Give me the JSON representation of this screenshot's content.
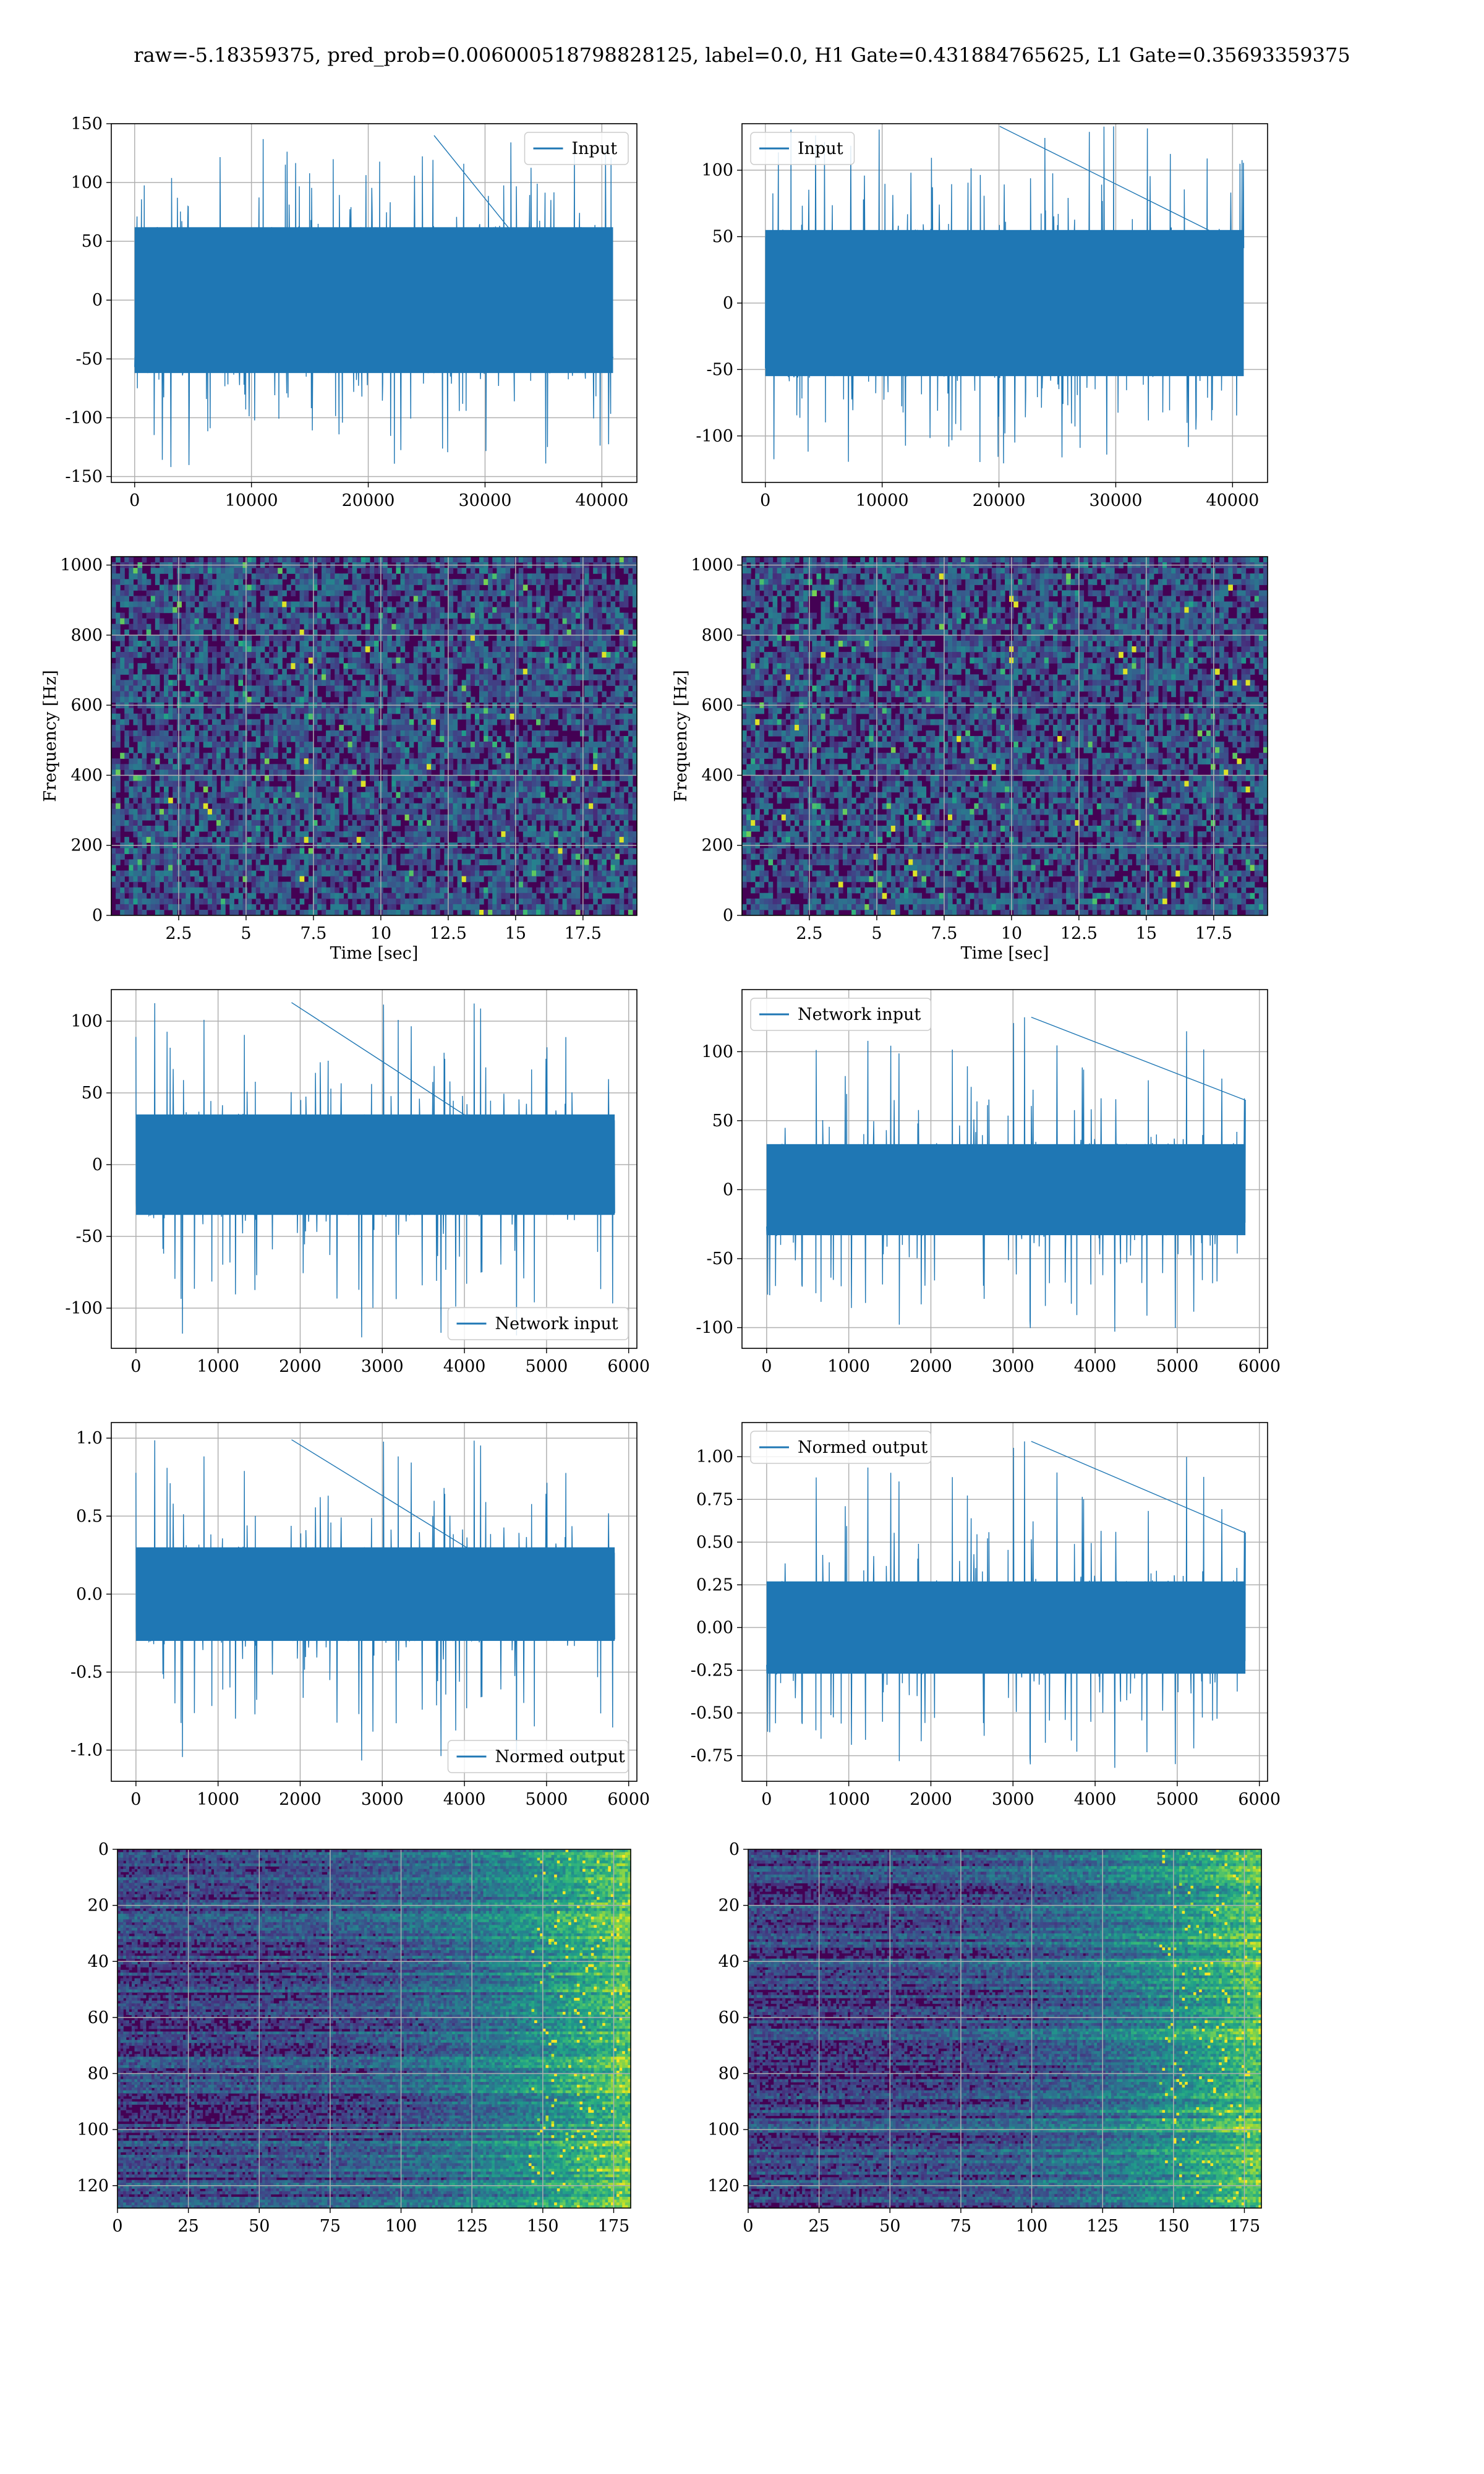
{
  "title": "raw=-5.18359375, pred_prob=0.006000518798828125, label=0.0, H1 Gate=0.431884765625, L1 Gate=0.35693359375",
  "colors": {
    "line": "#1f77b4",
    "grid": "#b0b0b0",
    "viridis": [
      "#440154",
      "#482878",
      "#3e4989",
      "#31688e",
      "#26828e",
      "#1f9e89",
      "#35b779",
      "#6ece58",
      "#b5de2b",
      "#fde725"
    ]
  },
  "chart_data": [
    {
      "id": "h1-input",
      "type": "line",
      "title": "",
      "xlabel": "",
      "ylabel": "",
      "legend": {
        "label": "Input",
        "loc": "upper right"
      },
      "xlim": [
        -2000,
        43000
      ],
      "ylim": [
        -155,
        150
      ],
      "xticks": [
        0,
        10000,
        20000,
        30000,
        40000
      ],
      "yticks": [
        -150,
        -100,
        -50,
        0,
        50,
        100,
        150
      ],
      "x_range": [
        0,
        40960
      ],
      "band": [
        -62,
        62
      ],
      "excursions_max": 140,
      "excursions_min": -143,
      "seed": 11
    },
    {
      "id": "l1-input",
      "type": "line",
      "title": "",
      "xlabel": "",
      "ylabel": "",
      "legend": {
        "label": "Input",
        "loc": "upper left"
      },
      "xlim": [
        -2000,
        43000
      ],
      "ylim": [
        -135,
        135
      ],
      "xticks": [
        0,
        10000,
        20000,
        30000,
        40000
      ],
      "yticks": [
        -100,
        -50,
        0,
        50,
        100
      ],
      "x_range": [
        0,
        40960
      ],
      "band": [
        -55,
        55
      ],
      "excursions_max": 133,
      "excursions_min": -122,
      "seed": 23
    },
    {
      "id": "h1-spectrogram",
      "type": "heatmap",
      "title": "",
      "xlabel": "Time [sec]",
      "ylabel": "Frequency [Hz]",
      "xlim": [
        0,
        19.5
      ],
      "ylim": [
        0,
        1024
      ],
      "xticks": [
        2.5,
        5.0,
        7.5,
        10.0,
        12.5,
        15.0,
        17.5
      ],
      "yticks": [
        0,
        200,
        400,
        600,
        800,
        1000
      ],
      "seed": 5
    },
    {
      "id": "l1-spectrogram",
      "type": "heatmap",
      "title": "",
      "xlabel": "Time [sec]",
      "ylabel": "Frequency [Hz]",
      "xlim": [
        0,
        19.5
      ],
      "ylim": [
        0,
        1024
      ],
      "xticks": [
        2.5,
        5.0,
        7.5,
        10.0,
        12.5,
        15.0,
        17.5
      ],
      "yticks": [
        0,
        200,
        400,
        600,
        800,
        1000
      ],
      "seed": 9
    },
    {
      "id": "h1-network-input",
      "type": "line",
      "title": "",
      "xlabel": "",
      "ylabel": "",
      "legend": {
        "label": "Network input",
        "loc": "lower right"
      },
      "xlim": [
        -300,
        6100
      ],
      "ylim": [
        -128,
        122
      ],
      "xticks": [
        0,
        1000,
        2000,
        3000,
        4000,
        5000,
        6000
      ],
      "yticks": [
        -100,
        -50,
        0,
        50,
        100
      ],
      "x_range": [
        0,
        5830
      ],
      "band": [
        -35,
        35
      ],
      "excursions_max": 113,
      "excursions_min": -124,
      "seed": 31
    },
    {
      "id": "l1-network-input",
      "type": "line",
      "title": "",
      "xlabel": "",
      "ylabel": "",
      "legend": {
        "label": "Network input",
        "loc": "upper left"
      },
      "xlim": [
        -300,
        6100
      ],
      "ylim": [
        -115,
        145
      ],
      "xticks": [
        0,
        1000,
        2000,
        3000,
        4000,
        5000,
        6000
      ],
      "yticks": [
        -100,
        -50,
        0,
        50,
        100
      ],
      "x_range": [
        0,
        5830
      ],
      "band": [
        -33,
        33
      ],
      "excursions_max": 125,
      "excursions_min": -104,
      "seed": 37
    },
    {
      "id": "h1-normed-output",
      "type": "line",
      "title": "",
      "xlabel": "",
      "ylabel": "",
      "legend": {
        "label": "Normed output",
        "loc": "lower right"
      },
      "xlim": [
        -300,
        6100
      ],
      "ylim": [
        -1.2,
        1.1
      ],
      "xticks": [
        0,
        1000,
        2000,
        3000,
        4000,
        5000,
        6000
      ],
      "yticks": [
        -1.0,
        -0.5,
        0.0,
        0.5,
        1.0
      ],
      "x_range": [
        0,
        5830
      ],
      "band": [
        -0.3,
        0.3
      ],
      "excursions_max": 0.99,
      "excursions_min": -1.1,
      "seed": 31
    },
    {
      "id": "l1-normed-output",
      "type": "line",
      "title": "",
      "xlabel": "",
      "ylabel": "",
      "legend": {
        "label": "Normed output",
        "loc": "upper left"
      },
      "xlim": [
        -300,
        6100
      ],
      "ylim": [
        -0.9,
        1.2
      ],
      "xticks": [
        0,
        1000,
        2000,
        3000,
        4000,
        5000,
        6000
      ],
      "yticks": [
        -0.75,
        -0.5,
        -0.25,
        0.0,
        0.25,
        0.5,
        0.75,
        1.0
      ],
      "x_range": [
        0,
        5830
      ],
      "band": [
        -0.27,
        0.27
      ],
      "excursions_max": 1.09,
      "excursions_min": -0.83,
      "seed": 37
    },
    {
      "id": "h1-feature-map",
      "type": "heatmap",
      "title": "",
      "xlabel": "",
      "ylabel": "",
      "xlim": [
        0,
        181
      ],
      "ylim": [
        128,
        0
      ],
      "xticks": [
        0,
        25,
        50,
        75,
        100,
        125,
        150,
        175
      ],
      "yticks": [
        0,
        20,
        40,
        60,
        80,
        100,
        120
      ],
      "seed": 51
    },
    {
      "id": "l1-feature-map",
      "type": "heatmap",
      "title": "",
      "xlabel": "",
      "ylabel": "",
      "xlim": [
        0,
        181
      ],
      "ylim": [
        128,
        0
      ],
      "xticks": [
        0,
        25,
        50,
        75,
        100,
        125,
        150,
        175
      ],
      "yticks": [
        0,
        20,
        40,
        60,
        80,
        100,
        120
      ],
      "seed": 57
    }
  ]
}
